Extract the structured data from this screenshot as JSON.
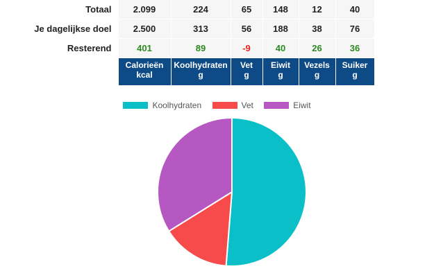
{
  "table": {
    "rows": [
      {
        "label": "Totaal",
        "values": [
          "2.099",
          "224",
          "65",
          "148",
          "12",
          "40"
        ]
      },
      {
        "label": "Je dagelijkse doel",
        "values": [
          "2.500",
          "313",
          "56",
          "188",
          "38",
          "76"
        ]
      },
      {
        "label": "Resterend",
        "values": [
          "401",
          "89",
          "-9",
          "40",
          "26",
          "36"
        ]
      }
    ],
    "columns": [
      {
        "name": "Calorieën",
        "unit": "kcal"
      },
      {
        "name": "Koolhydraten",
        "unit": "g"
      },
      {
        "name": "Vet",
        "unit": "g"
      },
      {
        "name": "Eiwit",
        "unit": "g"
      },
      {
        "name": "Vezels",
        "unit": "g"
      },
      {
        "name": "Suiker",
        "unit": "g"
      }
    ],
    "colors": {
      "header_bg": "#0e4a86",
      "positive": "#2b8a1f",
      "negative": "#e5221b"
    }
  },
  "chart_data": {
    "type": "pie",
    "labels": [
      "Koolhydraten",
      "Vet",
      "Eiwit"
    ],
    "values": [
      224,
      65,
      148
    ],
    "colors": [
      "#0bbfc8",
      "#f74a4a",
      "#b658c2"
    ],
    "legend": "top"
  }
}
